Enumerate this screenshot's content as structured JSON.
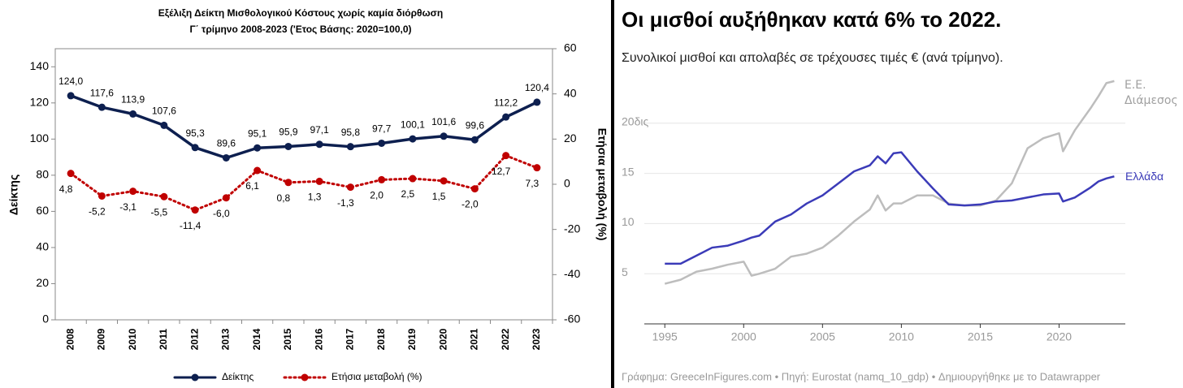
{
  "chart_data": [
    {
      "type": "line",
      "title": "Εξέλιξη  Δείκτη Μισθολογικού Κόστους χωρίς καμία διόρθωση",
      "subtitle": "Γ΄ τρίμηνο 2008-2023  ('Ετος Βάσης: 2020=100,0)",
      "y_label": "Δείκτης",
      "y2_label": "Ετήσια μεταβολή (%)",
      "categories": [
        "2008",
        "2009",
        "2010",
        "2011",
        "2012",
        "2013",
        "2014",
        "2015",
        "2016",
        "2017",
        "2018",
        "2019",
        "2020",
        "2021",
        "2022",
        "2023"
      ],
      "series": [
        {
          "name": "Δείκτης",
          "color": "#0d1f4f",
          "values": [
            124.0,
            117.6,
            113.9,
            107.6,
            95.3,
            89.6,
            95.1,
            95.9,
            97.1,
            95.8,
            97.7,
            100.1,
            101.6,
            99.6,
            112.2,
            120.4
          ],
          "value_labels": [
            "124,0",
            "117,6",
            "113,9",
            "107,6",
            "95,3",
            "89,6",
            "95,1",
            "95,9",
            "97,1",
            "95,8",
            "97,7",
            "100,1",
            "101,6",
            "99,6",
            "112,2",
            "120,4"
          ]
        },
        {
          "name": "Ετήσια μεταβολή  (%)",
          "color": "#c00000",
          "axis": "y2",
          "values": [
            4.8,
            -5.2,
            -3.1,
            -5.5,
            -11.4,
            -6.0,
            6.1,
            0.8,
            1.3,
            -1.3,
            2.0,
            2.5,
            1.5,
            -2.0,
            12.7,
            7.3
          ],
          "value_labels": [
            "4,8",
            "-5,2",
            "-3,1",
            "-5,5",
            "-11,4",
            "-6,0",
            "6,1",
            "0,8",
            "1,3",
            "-1,3",
            "2,0",
            "2,5",
            "1,5",
            "-2,0",
            "12,7",
            "7,3"
          ]
        }
      ],
      "ylim": [
        0,
        150
      ],
      "yticks": [
        0,
        20,
        40,
        60,
        80,
        100,
        120,
        140
      ],
      "y2lim": [
        -60,
        60
      ],
      "y2ticks": [
        -60,
        -40,
        -20,
        0,
        20,
        40,
        60
      ],
      "grid": false,
      "legend": "bottom"
    },
    {
      "type": "line",
      "title": "Οι μισθοί αυξήθηκαν κατά 6% το 2022.",
      "subtitle": "Συνολικοί μισθοί και απολαβές σε τρέχουσες τιμές € (ανά τρίμηνο).",
      "footer": "Γράφημα: GreeceInFigures.com • Πηγή: Eurostat (namq_10_gdp) • Δημιουργήθηκε με το Datawrapper",
      "x": [
        1995,
        1996,
        1997,
        1998,
        1999,
        2000,
        2000.5,
        2001,
        2002,
        2003,
        2004,
        2005,
        2006,
        2007,
        2008,
        2008.5,
        2009,
        2009.5,
        2010,
        2011,
        2012,
        2013,
        2014,
        2015,
        2016,
        2017,
        2018,
        2019,
        2020,
        2020.25,
        2021,
        2022,
        2022.5,
        2023,
        2023.5
      ],
      "series": [
        {
          "name": "Ε.Ε. Διάμεσος",
          "color": "#bdbdbd",
          "values": [
            4.0,
            4.4,
            5.2,
            5.5,
            5.9,
            6.2,
            4.8,
            5.0,
            5.5,
            6.7,
            7.0,
            7.6,
            8.8,
            10.2,
            11.4,
            12.8,
            11.3,
            12.0,
            12.0,
            12.8,
            12.8,
            12.0,
            11.8,
            11.8,
            12.3,
            14.0,
            17.5,
            18.5,
            19.0,
            17.2,
            19.3,
            21.5,
            22.7,
            24.0,
            24.2
          ]
        },
        {
          "name": "Ελλάδα",
          "color": "#3b3bb8",
          "values": [
            6.0,
            6.0,
            6.8,
            7.6,
            7.8,
            8.3,
            8.6,
            8.8,
            10.2,
            10.9,
            12.0,
            12.8,
            14.0,
            15.2,
            15.8,
            16.7,
            16.0,
            17.0,
            17.1,
            15.2,
            13.5,
            11.9,
            11.8,
            11.9,
            12.2,
            12.3,
            12.6,
            12.9,
            13.0,
            12.2,
            12.6,
            13.6,
            14.2,
            14.5,
            14.7
          ]
        }
      ],
      "xlim": [
        1993.7,
        2024.2
      ],
      "xticks": [
        1995,
        2000,
        2005,
        2010,
        2015,
        2020
      ],
      "ylim": [
        0,
        25
      ],
      "yticks": [
        5,
        10,
        {
          "value": 20,
          "label": "20δις"
        },
        15
      ],
      "grid": true,
      "legend": "line-end"
    }
  ]
}
